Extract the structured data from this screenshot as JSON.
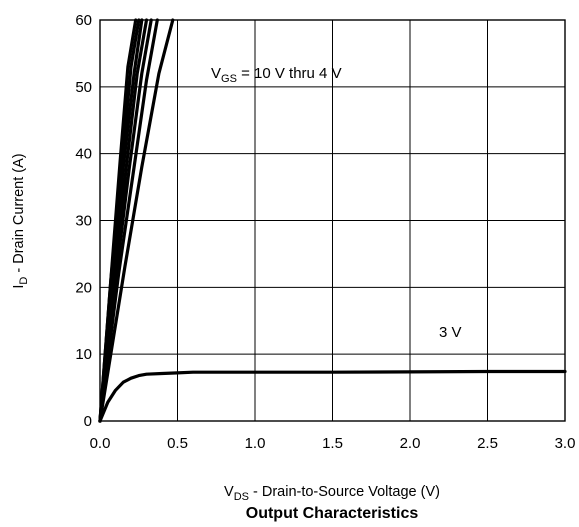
{
  "chart_data": {
    "type": "line",
    "title": "Output Characteristics",
    "xlabel": {
      "main": "V",
      "sub": "DS",
      "rest": " - Drain-to-Source Voltage (V)"
    },
    "ylabel": {
      "main": "I",
      "sub": "D",
      "rest": " - Drain Current (A)"
    },
    "xlim": [
      0,
      3.0
    ],
    "ylim": [
      0,
      60
    ],
    "xticks": [
      "0.0",
      "0.5",
      "1.0",
      "1.5",
      "2.0",
      "2.5",
      "3.0"
    ],
    "yticks": [
      "0",
      "10",
      "20",
      "30",
      "40",
      "50",
      "60"
    ],
    "grid": true,
    "annotations": {
      "vgs_range": {
        "main": "V",
        "sub": "GS",
        "rest": " = 10 V thru 4 V"
      },
      "vgs_3v": "3 V"
    },
    "series": [
      {
        "x": [
          0,
          0.16,
          0.27,
          0.38,
          0.47
        ],
        "y": [
          0,
          23,
          38,
          52,
          60
        ]
      },
      {
        "x": [
          0,
          0.12,
          0.22,
          0.3,
          0.37
        ],
        "y": [
          0,
          22,
          38,
          51,
          60
        ]
      },
      {
        "x": [
          0,
          0.1,
          0.19,
          0.27,
          0.33
        ],
        "y": [
          0,
          21,
          38,
          52,
          60
        ]
      },
      {
        "x": [
          0,
          0.09,
          0.17,
          0.24,
          0.3
        ],
        "y": [
          0,
          21,
          38,
          52,
          60
        ]
      },
      {
        "x": [
          0,
          0.08,
          0.15,
          0.22,
          0.27
        ],
        "y": [
          0,
          21,
          38,
          52,
          60
        ]
      },
      {
        "x": [
          0,
          0.07,
          0.14,
          0.2,
          0.25
        ],
        "y": [
          0,
          21,
          38,
          53,
          60
        ]
      },
      {
        "x": [
          0,
          0.07,
          0.13,
          0.18,
          0.23
        ],
        "y": [
          0,
          21,
          39,
          53,
          60
        ]
      },
      {
        "x": [
          0,
          0.05,
          0.1,
          0.15,
          0.2,
          0.25,
          0.3,
          0.4,
          0.5,
          0.6,
          1.0,
          1.5,
          2.0,
          2.5,
          3.0
        ],
        "y": [
          0,
          2.8,
          4.6,
          5.8,
          6.4,
          6.8,
          7.0,
          7.1,
          7.2,
          7.3,
          7.3,
          7.3,
          7.35,
          7.4,
          7.4
        ]
      }
    ]
  }
}
